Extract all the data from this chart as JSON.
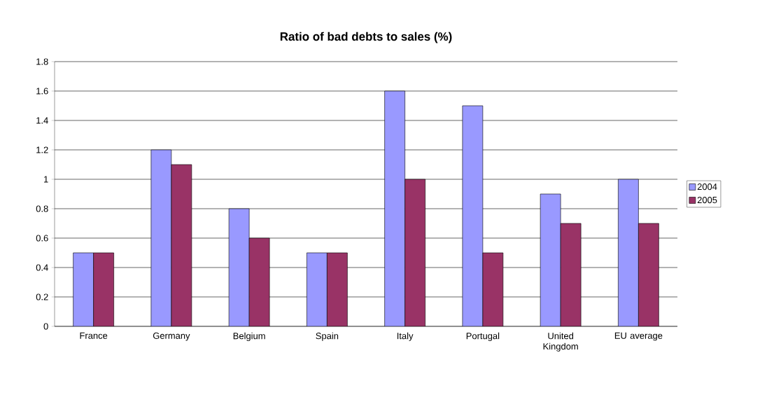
{
  "chart_data": {
    "type": "bar",
    "title": "Ratio of bad debts to sales (%)",
    "categories": [
      "France",
      "Germany",
      "Belgium",
      "Spain",
      "Italy",
      "Portugal",
      "United Kingdom",
      "EU average"
    ],
    "series": [
      {
        "name": "2004",
        "color": "#9999ff",
        "values": [
          0.5,
          1.2,
          0.8,
          0.5,
          1.6,
          1.5,
          0.9,
          1.0
        ]
      },
      {
        "name": "2005",
        "color": "#993366",
        "values": [
          0.5,
          1.1,
          0.6,
          0.5,
          1.0,
          0.5,
          0.7,
          0.7
        ]
      }
    ],
    "ylim": [
      0,
      1.8
    ],
    "yticks": [
      0,
      0.2,
      0.4,
      0.6,
      0.8,
      1,
      1.2,
      1.4,
      1.6,
      1.8
    ],
    "grid": "y",
    "legend": "right"
  }
}
